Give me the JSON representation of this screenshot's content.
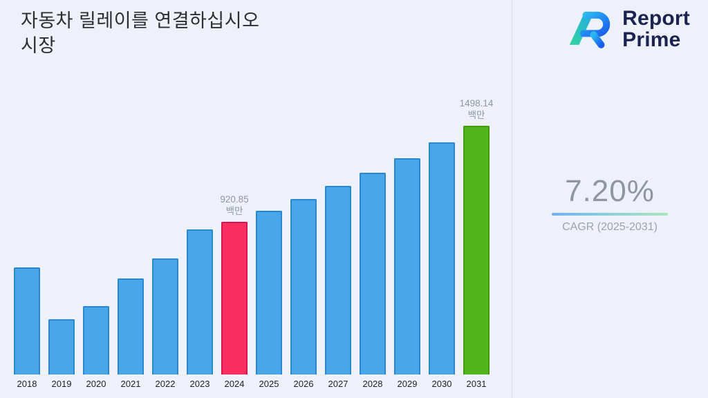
{
  "title": {
    "line1": "자동차 릴레이를 연결하십시오",
    "line2": "시장"
  },
  "logo": {
    "line1": "Report",
    "line2": "Prime"
  },
  "cagr": {
    "value": "7.20%",
    "label": "CAGR (2025-2031)"
  },
  "chart_data": {
    "type": "bar",
    "title": "자동차 릴레이를 연결하십시오 시장",
    "xlabel": "",
    "ylabel": "",
    "categories": [
      "2018",
      "2019",
      "2020",
      "2021",
      "2022",
      "2023",
      "2024",
      "2025",
      "2026",
      "2027",
      "2028",
      "2029",
      "2030",
      "2031"
    ],
    "values": [
      646,
      335,
      412,
      578,
      699,
      872,
      920.85,
      987.15,
      1058.23,
      1134.42,
      1216.1,
      1303.66,
      1397.52,
      1498.14
    ],
    "ylim": [
      0,
      1560
    ],
    "grid": false,
    "legend": false,
    "annotations": [
      {
        "category": "2024",
        "value_label": "920.85",
        "unit_label": "백만"
      },
      {
        "category": "2031",
        "value_label": "1498.14",
        "unit_label": "백만"
      }
    ],
    "bar_styles": {
      "default": {
        "fill": "#49a7e9",
        "border": "#2787cf"
      },
      "2024": {
        "fill": "#f92f62",
        "border": "#d6134b"
      },
      "2031": {
        "fill": "#53b51c",
        "border": "#3f9b10"
      }
    }
  },
  "colors": {
    "background": "#eef1fa",
    "title_text": "#2d2d2d",
    "logo_navy": "#1b2450",
    "cagr_text": "#8f959f",
    "gradient_start": "#6fb0f3",
    "gradient_end": "#a9e6b9"
  }
}
